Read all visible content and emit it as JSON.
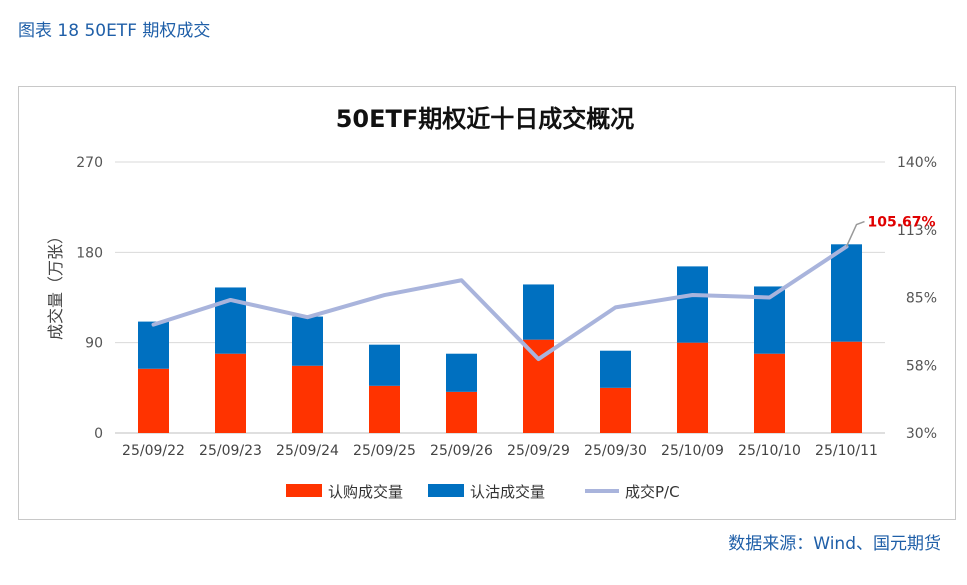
{
  "header": {
    "caption": "图表 18 50ETF 期权成交"
  },
  "footer": {
    "source": "数据来源：Wind、国元期货"
  },
  "colors": {
    "call": "#ff3300",
    "put": "#0070c0",
    "pc_line": "#a9b4dc",
    "callout": "#e00000"
  },
  "chart_data": {
    "type": "bar",
    "title": "50ETF期权近十日成交概况",
    "ylabel": "成交量（万张）",
    "ylim": [
      0,
      270
    ],
    "yticks": [
      "0",
      "90",
      "180",
      "270"
    ],
    "y2lim": [
      30,
      140
    ],
    "y2ticks": [
      "30%",
      "58%",
      "85%",
      "113%",
      "140%"
    ],
    "categories": [
      "25/09/22",
      "25/09/23",
      "25/09/24",
      "25/09/25",
      "25/09/26",
      "25/09/29",
      "25/09/30",
      "25/10/09",
      "25/10/10",
      "25/10/11"
    ],
    "series": [
      {
        "name": "认购成交量",
        "kind": "bar",
        "values": [
          64,
          79,
          67,
          47,
          41,
          93,
          45,
          90,
          79,
          91
        ]
      },
      {
        "name": "认沽成交量",
        "kind": "bar",
        "values": [
          47,
          66,
          49,
          41,
          38,
          55,
          37,
          76,
          67,
          97
        ]
      },
      {
        "name": "成交P/C",
        "kind": "line",
        "axis": "right",
        "values": [
          74,
          84,
          77,
          86,
          92,
          60,
          81,
          86,
          85,
          105.67
        ]
      }
    ],
    "annotation": {
      "text": "105.67%"
    },
    "legend": "bottom",
    "grid": true
  }
}
